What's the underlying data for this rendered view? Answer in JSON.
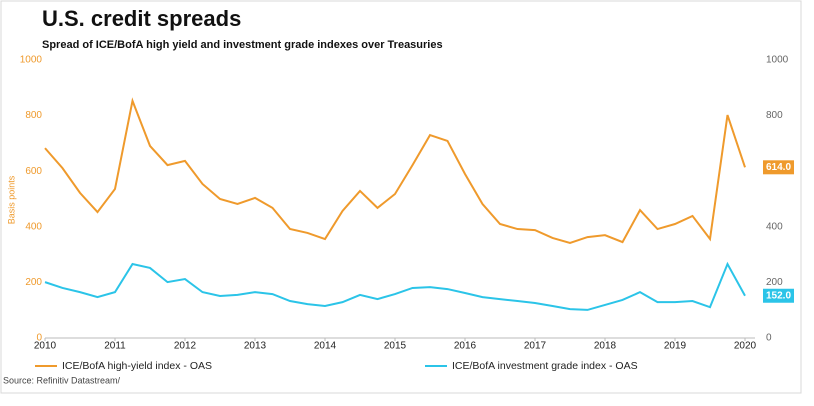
{
  "chart_data": {
    "type": "line",
    "title": "U.S. credit spreads",
    "subtitle": "Spread of ICE/BofA high yield and investment grade indexes over Treasuries",
    "y_axis_label": "Basis points",
    "source": "Source: Refinitiv Datastream/",
    "x": [
      2010,
      2010.25,
      2010.5,
      2010.75,
      2011,
      2011.25,
      2011.5,
      2011.75,
      2012,
      2012.25,
      2012.5,
      2012.75,
      2013,
      2013.25,
      2013.5,
      2013.75,
      2014,
      2014.25,
      2014.5,
      2014.75,
      2015,
      2015.25,
      2015.5,
      2015.75,
      2016,
      2016.25,
      2016.5,
      2016.75,
      2017,
      2017.25,
      2017.5,
      2017.75,
      2018,
      2018.25,
      2018.5,
      2018.75,
      2019,
      2019.25,
      2019.5,
      2019.75,
      2020
    ],
    "xlim": [
      2010,
      2020
    ],
    "xticks": [
      2010,
      2011,
      2012,
      2013,
      2014,
      2015,
      2016,
      2017,
      2018,
      2019,
      2020
    ],
    "ylim": [
      0,
      1000
    ],
    "yticks": [
      0,
      200,
      400,
      600,
      800,
      1000
    ],
    "y2lim": [
      0,
      1000
    ],
    "y2ticks": [
      0,
      200,
      400,
      600,
      800,
      1000
    ],
    "series": [
      {
        "name": "ICE/BofA high-yield index - OAS",
        "color": "#ef9a2c",
        "end_label": "614.0",
        "values": [
          683,
          611,
          522,
          453,
          536,
          853,
          691,
          622,
          637,
          554,
          500,
          482,
          504,
          468,
          392,
          378,
          356,
          457,
          529,
          468,
          518,
          622,
          730,
          709,
          590,
          482,
          410,
          392,
          388,
          360,
          342,
          363,
          370,
          345,
          460,
          392,
          410,
          439,
          356,
          802,
          614
        ]
      },
      {
        "name": "ICE/BofA investment grade index - OAS",
        "color": "#2bc4e8",
        "end_label": "152.0",
        "values": [
          201,
          180,
          165,
          147,
          165,
          266,
          252,
          201,
          212,
          165,
          151,
          155,
          165,
          158,
          133,
          122,
          115,
          129,
          155,
          140,
          158,
          180,
          183,
          176,
          162,
          147,
          140,
          133,
          126,
          115,
          104,
          101,
          119,
          137,
          165,
          129,
          129,
          133,
          111,
          266,
          152
        ]
      }
    ]
  }
}
